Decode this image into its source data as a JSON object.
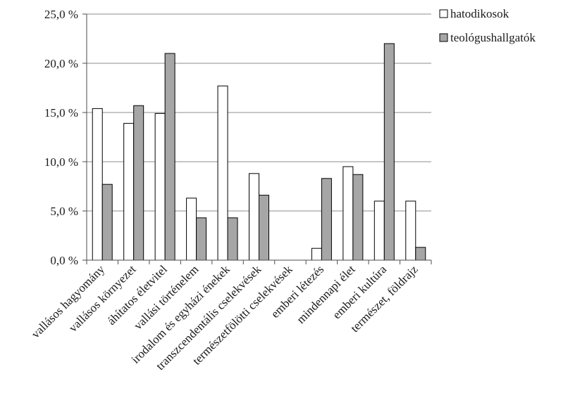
{
  "chart_data": {
    "type": "bar",
    "categories": [
      "vallásos hagyomány",
      "vallásos környezet",
      "áhítatos életvitel",
      "vallási történelem",
      "irodalom és egyházi énekek",
      "transzcendentális cselekvések",
      "természetfölötti cselekvések",
      "emberi létezés",
      "mindennapi élet",
      "emberi kultúra",
      "természet, földrajz"
    ],
    "series": [
      {
        "name": "hatodikosok",
        "color": "#ffffff",
        "values": [
          15.4,
          13.9,
          14.9,
          6.3,
          17.7,
          8.8,
          0.0,
          1.2,
          9.5,
          6.0,
          6.0
        ]
      },
      {
        "name": "teológushallgatók",
        "color": "#a6a6a6",
        "values": [
          7.7,
          15.7,
          21.0,
          4.3,
          4.3,
          6.6,
          0.0,
          8.3,
          8.7,
          22.0,
          1.3
        ]
      }
    ],
    "ylim": [
      0,
      25
    ],
    "yticks": [
      0,
      5,
      10,
      15,
      20,
      25
    ],
    "ytick_labels": [
      "0,0 %",
      "5,0 %",
      "10,0 %",
      "15,0 %",
      "20,0 %",
      "25,0 %"
    ],
    "grid": true,
    "legend_position": "top-right",
    "title": "",
    "xlabel": "",
    "ylabel": ""
  }
}
